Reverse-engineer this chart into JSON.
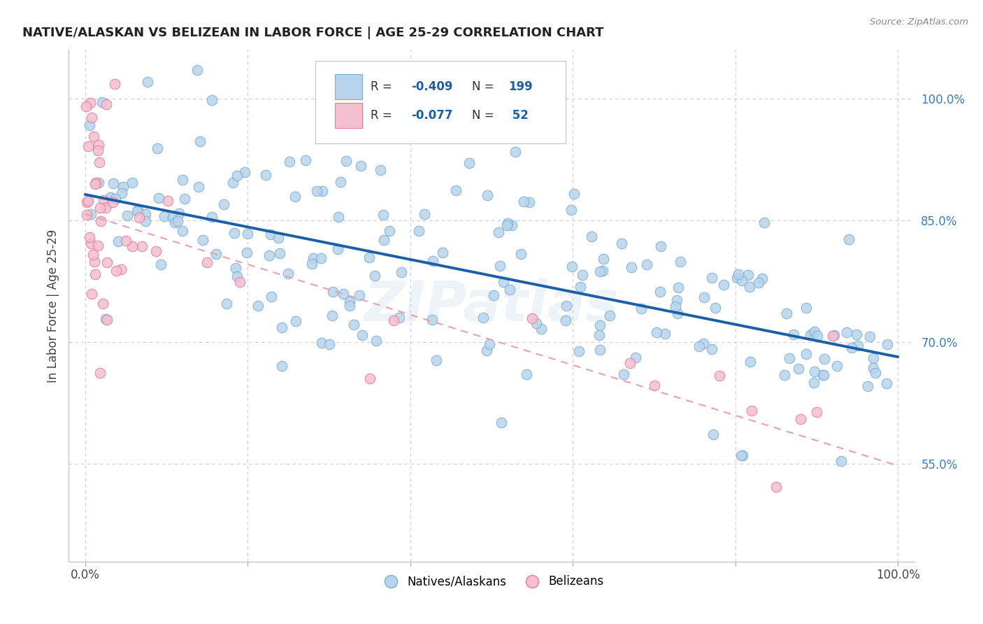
{
  "title": "NATIVE/ALASKAN VS BELIZEAN IN LABOR FORCE | AGE 25-29 CORRELATION CHART",
  "source": "Source: ZipAtlas.com",
  "ylabel_text": "In Labor Force | Age 25-29",
  "xlim": [
    -0.02,
    1.02
  ],
  "ylim": [
    0.43,
    1.06
  ],
  "x_ticks": [
    0.0,
    0.2,
    0.4,
    0.6,
    0.8,
    1.0
  ],
  "x_tick_labels": [
    "0.0%",
    "",
    "",
    "",
    "",
    "100.0%"
  ],
  "y_tick_vals_right": [
    0.55,
    0.7,
    0.85,
    1.0
  ],
  "y_tick_labels_right": [
    "55.0%",
    "70.0%",
    "85.0%",
    "100.0%"
  ],
  "blue_color": "#b8d4ec",
  "blue_edge": "#7aaed4",
  "pink_color": "#f4bfce",
  "pink_edge": "#e87a9a",
  "trendline_blue": "#1a5fa8",
  "trendline_pink": "#e8a0b0",
  "watermark": "ZIPatlas",
  "blue_R": -0.409,
  "blue_N": 199,
  "pink_R": -0.077,
  "pink_N": 52,
  "grid_color": "#cccccc",
  "grid_style": "--",
  "blue_trendline_start_y": 0.882,
  "blue_trendline_end_y": 0.682,
  "pink_trendline_start_y": 0.858,
  "pink_trendline_end_y": 0.548
}
